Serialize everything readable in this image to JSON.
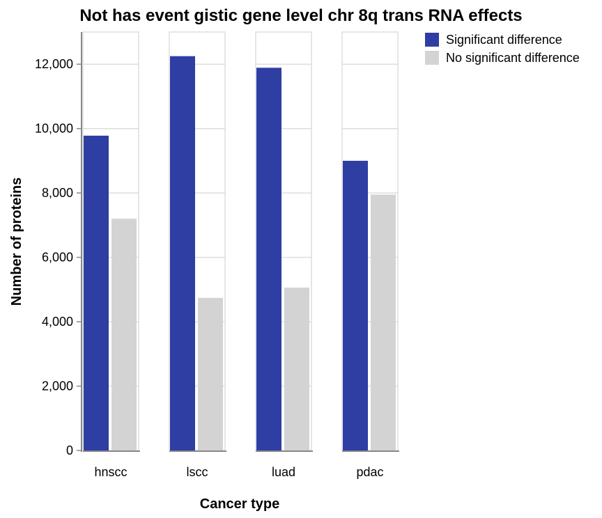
{
  "chart_data": {
    "type": "bar",
    "title": "Not has event gistic gene level chr 8q trans RNA effects",
    "xlabel": "Cancer type",
    "ylabel": "Number of proteins",
    "categories": [
      "hnscc",
      "lscc",
      "luad",
      "pdac"
    ],
    "series": [
      {
        "name": "Significant difference",
        "color": "#2e3ea3",
        "values": [
          9780,
          12250,
          11890,
          9000
        ]
      },
      {
        "name": "No significant difference",
        "color": "#d3d3d3",
        "values": [
          7200,
          4740,
          5060,
          7950
        ]
      }
    ],
    "ylim": [
      0,
      13000
    ],
    "yticks": [
      0,
      2000,
      4000,
      6000,
      8000,
      10000,
      12000
    ],
    "ytick_labels": [
      "0",
      "2,000",
      "4,000",
      "6,000",
      "8,000",
      "10,000",
      "12,000"
    ],
    "grid": true,
    "legend_position": "top-right"
  }
}
